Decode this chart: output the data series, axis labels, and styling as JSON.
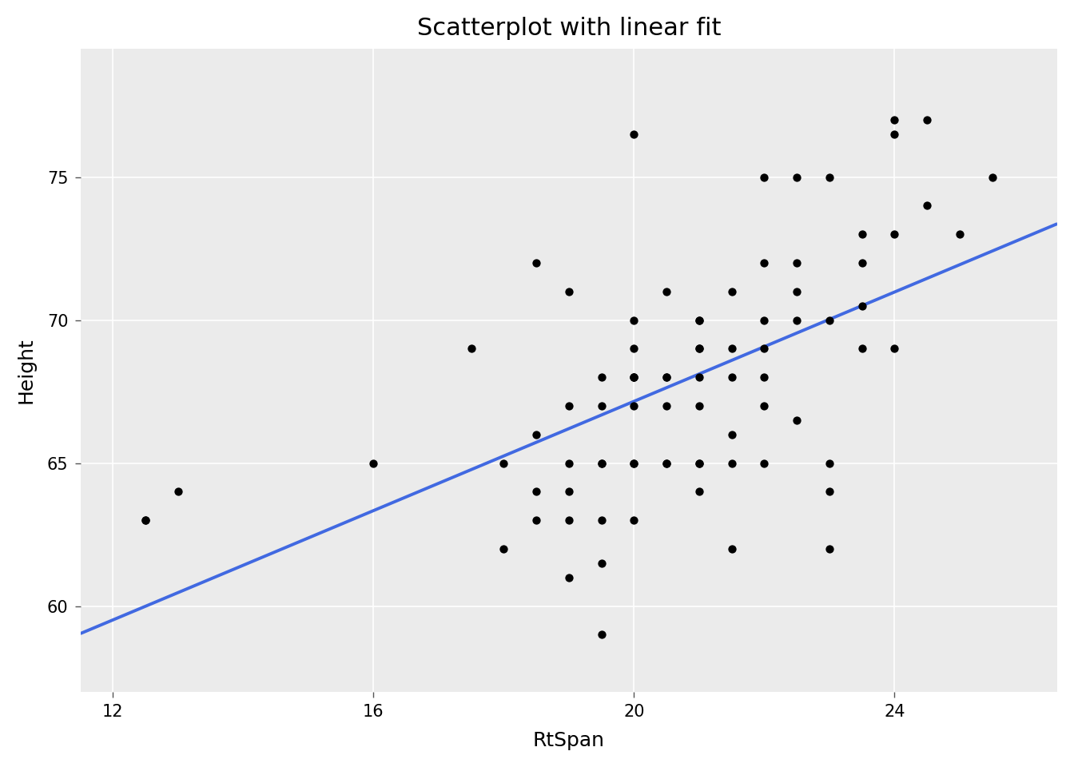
{
  "title": "Scatterplot with linear fit",
  "xlabel": "RtSpan",
  "ylabel": "Height",
  "panel_color": "#EBEBEB",
  "outer_color": "#FFFFFF",
  "point_color": "#000000",
  "line_color": "#4169E1",
  "grid_color": "#FFFFFF",
  "xlim": [
    11.5,
    26.5
  ],
  "ylim": [
    57.0,
    79.5
  ],
  "xticks": [
    12,
    16,
    20,
    24
  ],
  "yticks": [
    60,
    65,
    70,
    75
  ],
  "title_fontsize": 22,
  "axis_label_fontsize": 18,
  "tick_fontsize": 15,
  "point_size": 55,
  "line_width": 2.8,
  "x": [
    12.5,
    12.5,
    13.0,
    16.0,
    17.5,
    18.0,
    18.0,
    18.5,
    18.5,
    18.5,
    18.5,
    19.0,
    19.0,
    19.0,
    19.0,
    19.0,
    19.0,
    19.5,
    19.5,
    19.5,
    19.5,
    19.5,
    19.5,
    19.5,
    20.0,
    20.0,
    20.0,
    20.0,
    20.0,
    20.0,
    20.0,
    20.0,
    20.0,
    20.0,
    20.5,
    20.5,
    20.5,
    20.5,
    20.5,
    20.5,
    21.0,
    21.0,
    21.0,
    21.0,
    21.0,
    21.0,
    21.0,
    21.0,
    21.0,
    21.5,
    21.5,
    21.5,
    21.5,
    21.5,
    21.5,
    22.0,
    22.0,
    22.0,
    22.0,
    22.0,
    22.0,
    22.0,
    22.5,
    22.5,
    22.5,
    22.5,
    22.5,
    23.0,
    23.0,
    23.0,
    23.0,
    23.0,
    23.5,
    23.5,
    23.5,
    23.5,
    24.0,
    24.0,
    24.0,
    24.0,
    24.5,
    24.5,
    25.0,
    25.5
  ],
  "y": [
    63.0,
    63.0,
    64.0,
    65.0,
    69.0,
    62.0,
    65.0,
    63.0,
    64.0,
    66.0,
    72.0,
    61.0,
    63.0,
    64.0,
    65.0,
    67.0,
    71.0,
    59.0,
    61.5,
    63.0,
    65.0,
    65.0,
    67.0,
    68.0,
    63.0,
    65.0,
    65.0,
    67.0,
    68.0,
    68.0,
    68.0,
    69.0,
    70.0,
    76.5,
    65.0,
    65.0,
    67.0,
    68.0,
    68.0,
    71.0,
    64.0,
    65.0,
    65.0,
    67.0,
    68.0,
    69.0,
    69.0,
    70.0,
    70.0,
    62.0,
    65.0,
    66.0,
    68.0,
    69.0,
    71.0,
    65.0,
    67.0,
    68.0,
    69.0,
    70.0,
    72.0,
    75.0,
    66.5,
    70.0,
    71.0,
    72.0,
    75.0,
    62.0,
    64.0,
    65.0,
    70.0,
    75.0,
    69.0,
    70.5,
    72.0,
    73.0,
    69.0,
    73.0,
    76.5,
    77.0,
    74.0,
    77.0,
    73.0,
    75.0
  ]
}
